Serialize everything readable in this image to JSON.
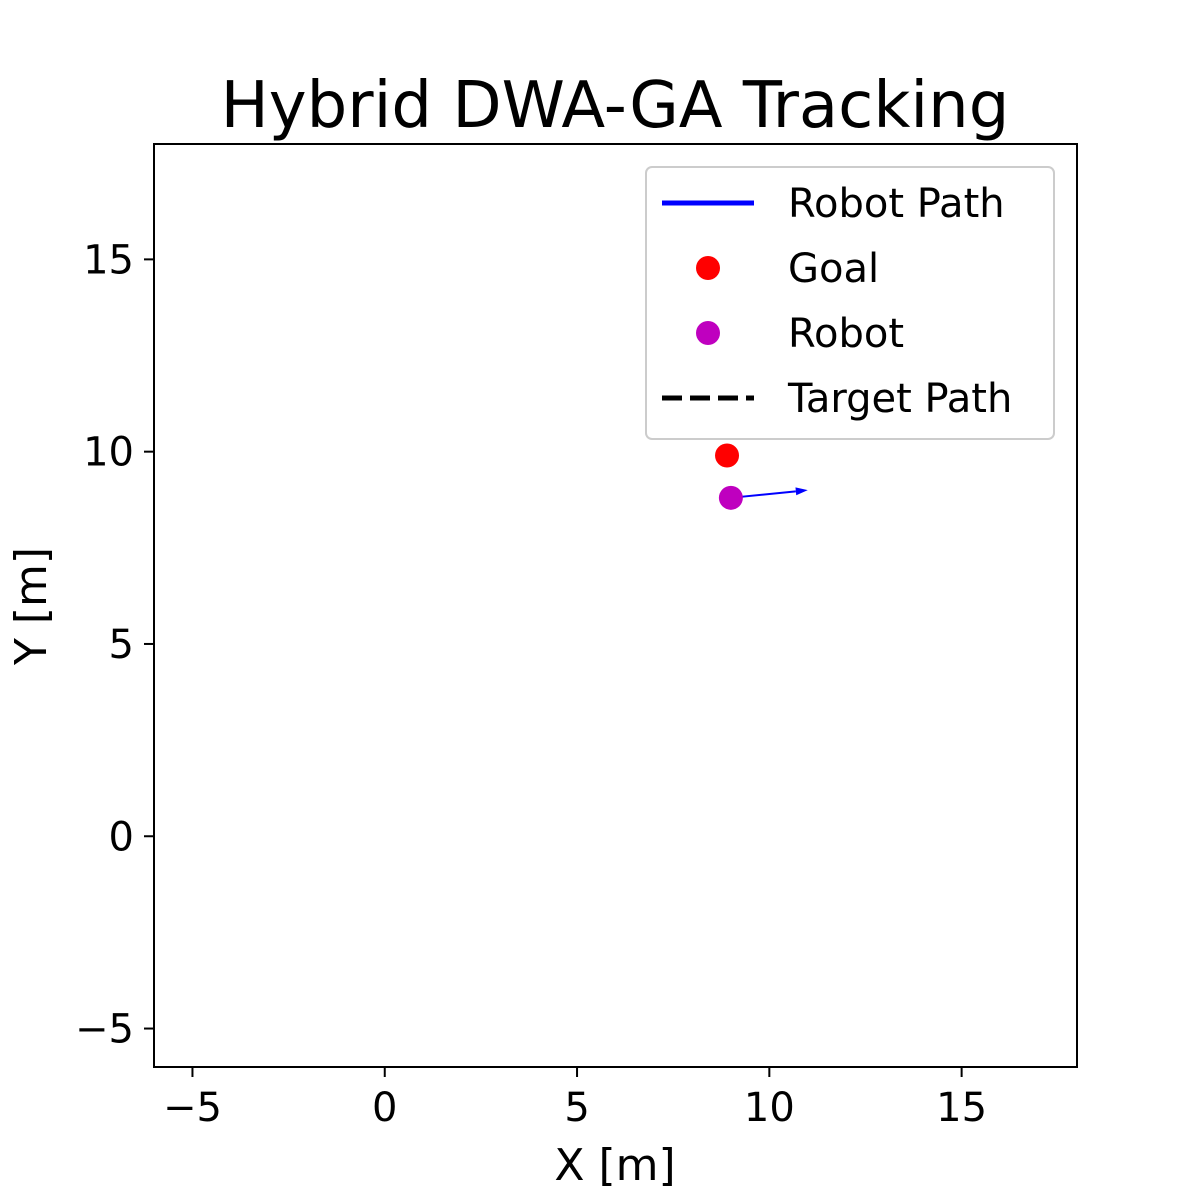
{
  "chart_data": {
    "type": "scatter",
    "title": "Hybrid DWA-GA Tracking",
    "xlabel": "X [m]",
    "ylabel": "Y [m]",
    "xlim": [
      -6,
      18
    ],
    "ylim": [
      -6,
      18
    ],
    "xticks": [
      -5,
      0,
      5,
      10,
      15
    ],
    "yticks": [
      -5,
      0,
      5,
      10,
      15
    ],
    "xtick_labels": [
      "−5",
      "0",
      "5",
      "10",
      "15"
    ],
    "ytick_labels": [
      "−5",
      "0",
      "5",
      "10",
      "15"
    ],
    "grid": false,
    "legend_position": "top-right",
    "legend": [
      {
        "label": "Robot Path",
        "marker": "line",
        "color": "#0000ff"
      },
      {
        "label": "Goal",
        "marker": "dot",
        "color": "#ff0000"
      },
      {
        "label": "Robot",
        "marker": "dot",
        "color": "#bf00bf"
      },
      {
        "label": "Target Path",
        "marker": "dashed",
        "color": "#000000"
      }
    ],
    "series": [
      {
        "name": "Robot Path",
        "color": "#0000ff",
        "x": [],
        "y": []
      },
      {
        "name": "Target Path",
        "color": "#000000",
        "x": [],
        "y": []
      }
    ],
    "goal": {
      "x": 8.9,
      "y": 9.9,
      "color": "#ff0000"
    },
    "robot": {
      "x": 9.0,
      "y": 8.8,
      "color": "#bf00bf"
    },
    "heading_arrow": {
      "x0": 9.0,
      "y0": 8.8,
      "x1": 11.0,
      "y1": 9.0,
      "color": "#0000ff"
    }
  }
}
